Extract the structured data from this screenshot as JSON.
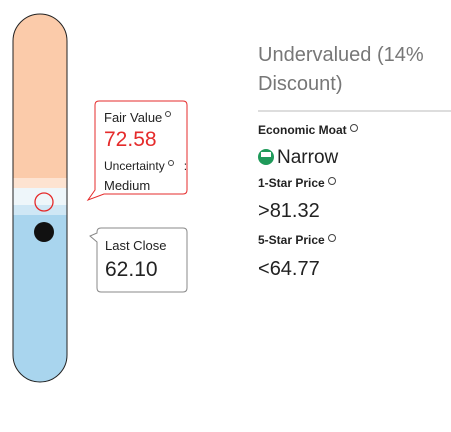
{
  "fair_value": {
    "label": "Fair Value",
    "value": "72.58",
    "uncertainty_label": "Uncertainty",
    "separator": ":",
    "uncertainty": "Medium"
  },
  "last_close": {
    "label": "Last Close",
    "value": "62.10"
  },
  "valuation": {
    "line1": "Undervalued (14%",
    "line2": "Discount)"
  },
  "economic_moat": {
    "label": "Economic Moat",
    "value": "Narrow"
  },
  "one_star_price": {
    "label": "1-Star Price",
    "symbol": ">",
    "value": "81.32"
  },
  "five_star_price": {
    "label": "5-Star Price",
    "symbol": "<",
    "value": "64.77"
  }
}
